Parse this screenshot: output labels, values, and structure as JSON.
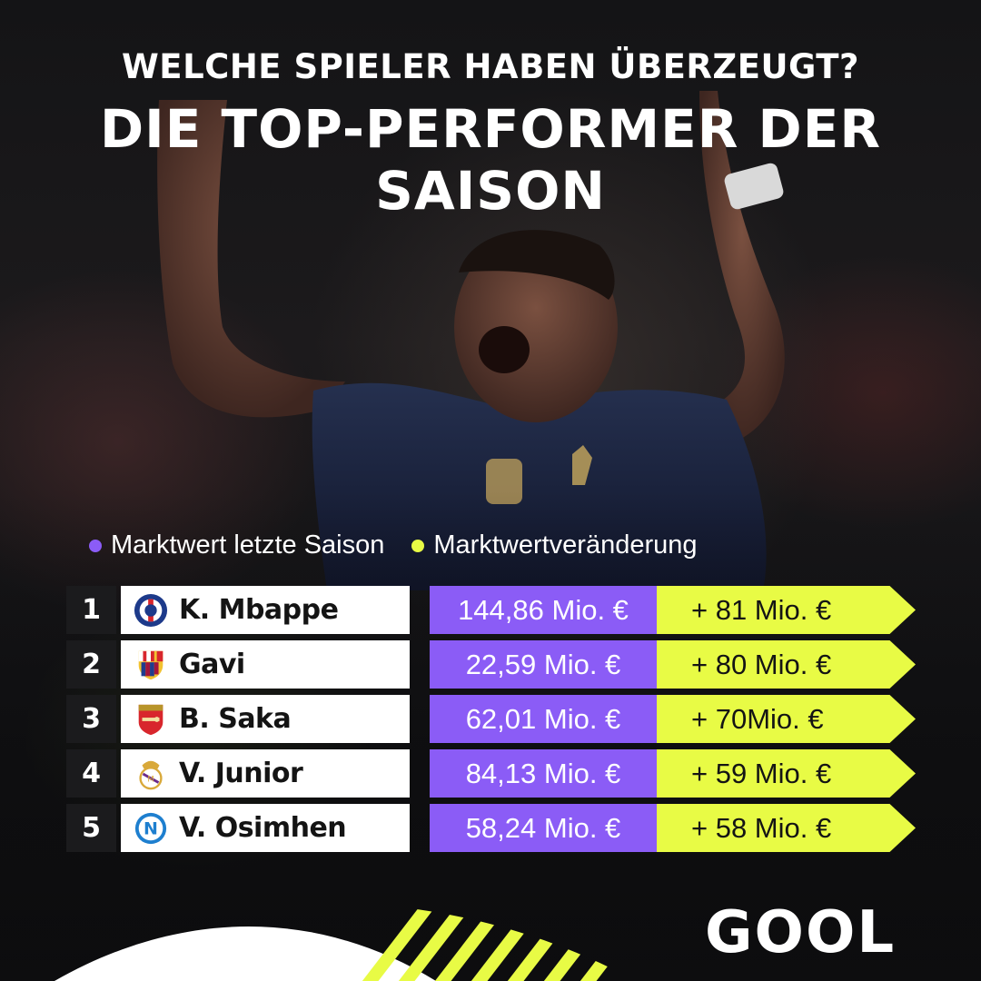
{
  "header": {
    "subtitle": "WELCHE SPIELER HABEN ÜBERZEUGT?",
    "title": "DIE TOP-PERFORMER DER SAISON"
  },
  "legend": {
    "last_season": "Marktwert letzte Saison",
    "change": "Marktwertveränderung"
  },
  "colors": {
    "purple": "#8b5cf6",
    "lime": "#e8fb45",
    "dark": "#1b1b1d"
  },
  "players": [
    {
      "rank": "1",
      "name": "K. Mbappe",
      "club_icon": "psg-crest-icon",
      "last_value": "144,86 Mio. €",
      "change": "+ 81 Mio. €"
    },
    {
      "rank": "2",
      "name": "Gavi",
      "club_icon": "barcelona-crest-icon",
      "last_value": "22,59 Mio. €",
      "change": "+ 80 Mio. €"
    },
    {
      "rank": "3",
      "name": "B. Saka",
      "club_icon": "arsenal-crest-icon",
      "last_value": "62,01 Mio. €",
      "change": "+ 70Mio. €"
    },
    {
      "rank": "4",
      "name": "V. Junior",
      "club_icon": "real-madrid-crest-icon",
      "last_value": "84,13 Mio. €",
      "change": "+ 59 Mio. €"
    },
    {
      "rank": "5",
      "name": "V. Osimhen",
      "club_icon": "napoli-crest-icon",
      "last_value": "58,24 Mio. €",
      "change": "+ 58 Mio. €"
    }
  ],
  "brand": {
    "logo": "GOOL"
  }
}
